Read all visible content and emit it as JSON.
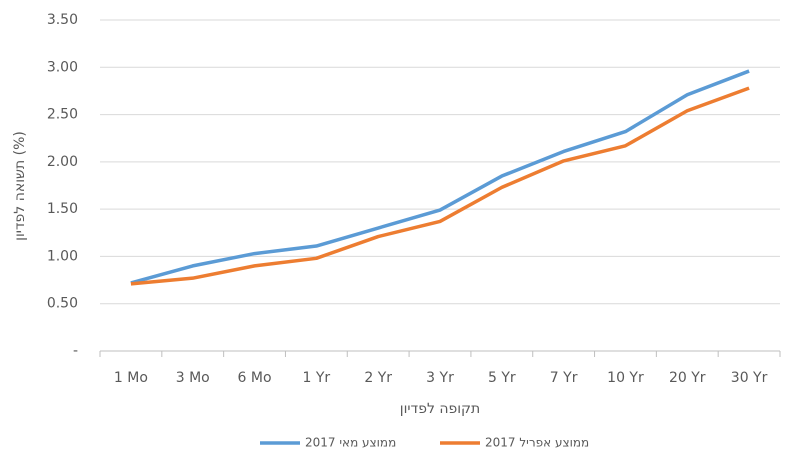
{
  "chart_data": {
    "type": "line",
    "x_label": "תקופה לפדיון",
    "y_label": "תשואה לפדיון (%)",
    "categories": [
      "1 Mo",
      "3 Mo",
      "6 Mo",
      "1 Yr",
      "2 Yr",
      "3 Yr",
      "5 Yr",
      "7 Yr",
      "10 Yr",
      "20 Yr",
      "30 Yr"
    ],
    "series": [
      {
        "name": "ממוצע מאי 2017",
        "color": "#5b9bd5",
        "values": [
          0.72,
          0.9,
          1.03,
          1.11,
          1.3,
          1.49,
          1.85,
          2.11,
          2.32,
          2.71,
          2.96
        ]
      },
      {
        "name": "ממוצע אפריל 2017",
        "color": "#ed7d31",
        "values": [
          0.71,
          0.77,
          0.9,
          0.98,
          1.21,
          1.37,
          1.73,
          2.01,
          2.17,
          2.54,
          2.78
        ]
      }
    ],
    "ylim": [
      0,
      3.5
    ],
    "yticks": [
      {
        "value": 0,
        "label": "-"
      },
      {
        "value": 0.5,
        "label": "0.50"
      },
      {
        "value": 1,
        "label": "1.00"
      },
      {
        "value": 1.5,
        "label": "1.50"
      },
      {
        "value": 2,
        "label": "2.00"
      },
      {
        "value": 2.5,
        "label": "2.50"
      },
      {
        "value": 3,
        "label": "3.00"
      },
      {
        "value": 3.5,
        "label": "3.50"
      }
    ],
    "grid": true
  }
}
